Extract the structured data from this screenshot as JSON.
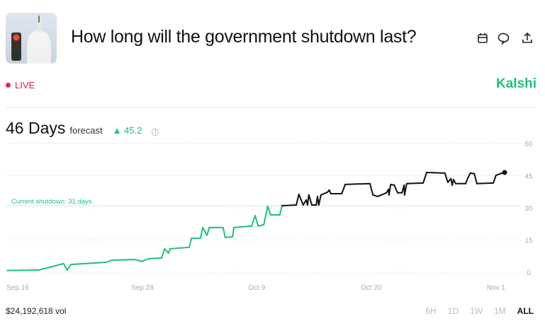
{
  "header": {
    "title": "How long will the government shutdown last?",
    "icons": [
      "calendar-icon",
      "comment-icon",
      "share-icon"
    ]
  },
  "status": {
    "live_label": "LIVE",
    "live_color": "#e0245e"
  },
  "brand": {
    "name": "Kalshi",
    "color": "#1ec07a"
  },
  "summary": {
    "value": "46 Days",
    "label": "forecast",
    "change": "45.2",
    "change_direction": "up"
  },
  "footer": {
    "volume": "$24,192,618 vol",
    "ranges": [
      "6H",
      "1D",
      "1W",
      "1M",
      "ALL"
    ],
    "active_range": "ALL"
  },
  "chart_data": {
    "type": "line",
    "title": "",
    "xlabel": "",
    "ylabel": "",
    "ylim": [
      0,
      60
    ],
    "y_ticks": [
      "0",
      "15",
      "30",
      "45",
      "60"
    ],
    "x_ticks": [
      "Sep 16",
      "Sep 28",
      "Oct 9",
      "Oct 20",
      "Nov 1"
    ],
    "grid": "dotted horizontal",
    "reference_line": {
      "value": 31,
      "label": "Current shutdown: 31 days",
      "color": "#1ec07a"
    },
    "colors": {
      "below_reference": "#1ec07a",
      "above_reference": "#111111"
    },
    "x": [
      "Sep 15 00:00",
      "Sep 18 01:00",
      "Sep 20 10:00",
      "Sep 20 18:00",
      "Sep 21 03:00",
      "Sep 24 12:00",
      "Sep 25 02:00",
      "Sep 27 06:00",
      "Sep 27 22:00",
      "Sep 28 15:00",
      "Sep 29 20:00",
      "Sep 30 03:00",
      "Sep 30 12:00",
      "Sep 30 16:00",
      "Oct 2 12:00",
      "Oct 2 17:00",
      "Oct 3 14:00",
      "Oct 3 19:00",
      "Oct 4 05:00",
      "Oct 4 10:00",
      "Oct 4 18:00",
      "Oct 5 18:00",
      "Oct 5 23:00",
      "Oct 6 16:00",
      "Oct 6 19:00",
      "Oct 8 12:00",
      "Oct 8 20:00",
      "Oct 9 03:00",
      "Oct 9 16:00",
      "Oct 10 01:00",
      "Oct 10 08:00",
      "Oct 11 05:00",
      "Oct 11 10:00",
      "Oct 12 19:00",
      "Oct 13 01:00",
      "Oct 13 11:00",
      "Oct 13 18:00",
      "Oct 13 21:00",
      "Oct 14 00:00",
      "Oct 14 07:00",
      "Oct 14 17:00",
      "Oct 14 20:00",
      "Oct 14 23:00",
      "Oct 15 04:00",
      "Oct 15 19:00",
      "Oct 15 23:00",
      "Oct 16 03:00",
      "Oct 17 04:00",
      "Oct 17 12:00",
      "Oct 19 21:00",
      "Oct 20 04:00",
      "Oct 20 15:00",
      "Oct 21 11:00",
      "Oct 21 16:00",
      "Oct 21 17:00",
      "Oct 21 21:00",
      "Oct 22 05:00",
      "Oct 22 13:00",
      "Oct 22 23:00",
      "Oct 23 04:00",
      "Oct 23 05:00",
      "Oct 23 10:00",
      "Oct 25 00:00",
      "Oct 25 08:00",
      "Oct 27 02:00",
      "Oct 27 09:00",
      "Oct 27 16:00",
      "Oct 27 19:00",
      "Oct 27 22:00",
      "Oct 28 03:00",
      "Oct 29 02:00",
      "Oct 29 07:00",
      "Oct 29 13:00",
      "Oct 29 22:00",
      "Oct 30 04:00",
      "Oct 31 18:00",
      "Nov 1 00:00",
      "Nov 1 10:00",
      "Nov 1 20:00"
    ],
    "values": [
      0.8,
      1.0,
      4.0,
      1.0,
      3.6,
      4.6,
      5.6,
      5.9,
      5.0,
      6.3,
      6.6,
      10.9,
      8.9,
      10.9,
      11.6,
      15.8,
      15.8,
      20.8,
      17.2,
      20.8,
      20.8,
      20.8,
      16.2,
      16.5,
      20.8,
      21.5,
      26.4,
      21.5,
      22.1,
      30.7,
      26.7,
      26.7,
      31.0,
      31.3,
      36.3,
      31.3,
      33.7,
      31.3,
      36.0,
      31.3,
      31.3,
      35.3,
      31.3,
      36.0,
      37.3,
      38.3,
      36.6,
      36.6,
      40.9,
      41.3,
      36.0,
      35.3,
      37.0,
      38.6,
      36.0,
      40.9,
      40.6,
      37.0,
      37.0,
      40.6,
      36.0,
      41.3,
      41.6,
      46.5,
      46.2,
      41.9,
      43.6,
      40.6,
      43.2,
      41.3,
      41.3,
      43.9,
      46.2,
      45.9,
      41.3,
      41.6,
      45.2,
      45.9,
      46.5
    ]
  }
}
